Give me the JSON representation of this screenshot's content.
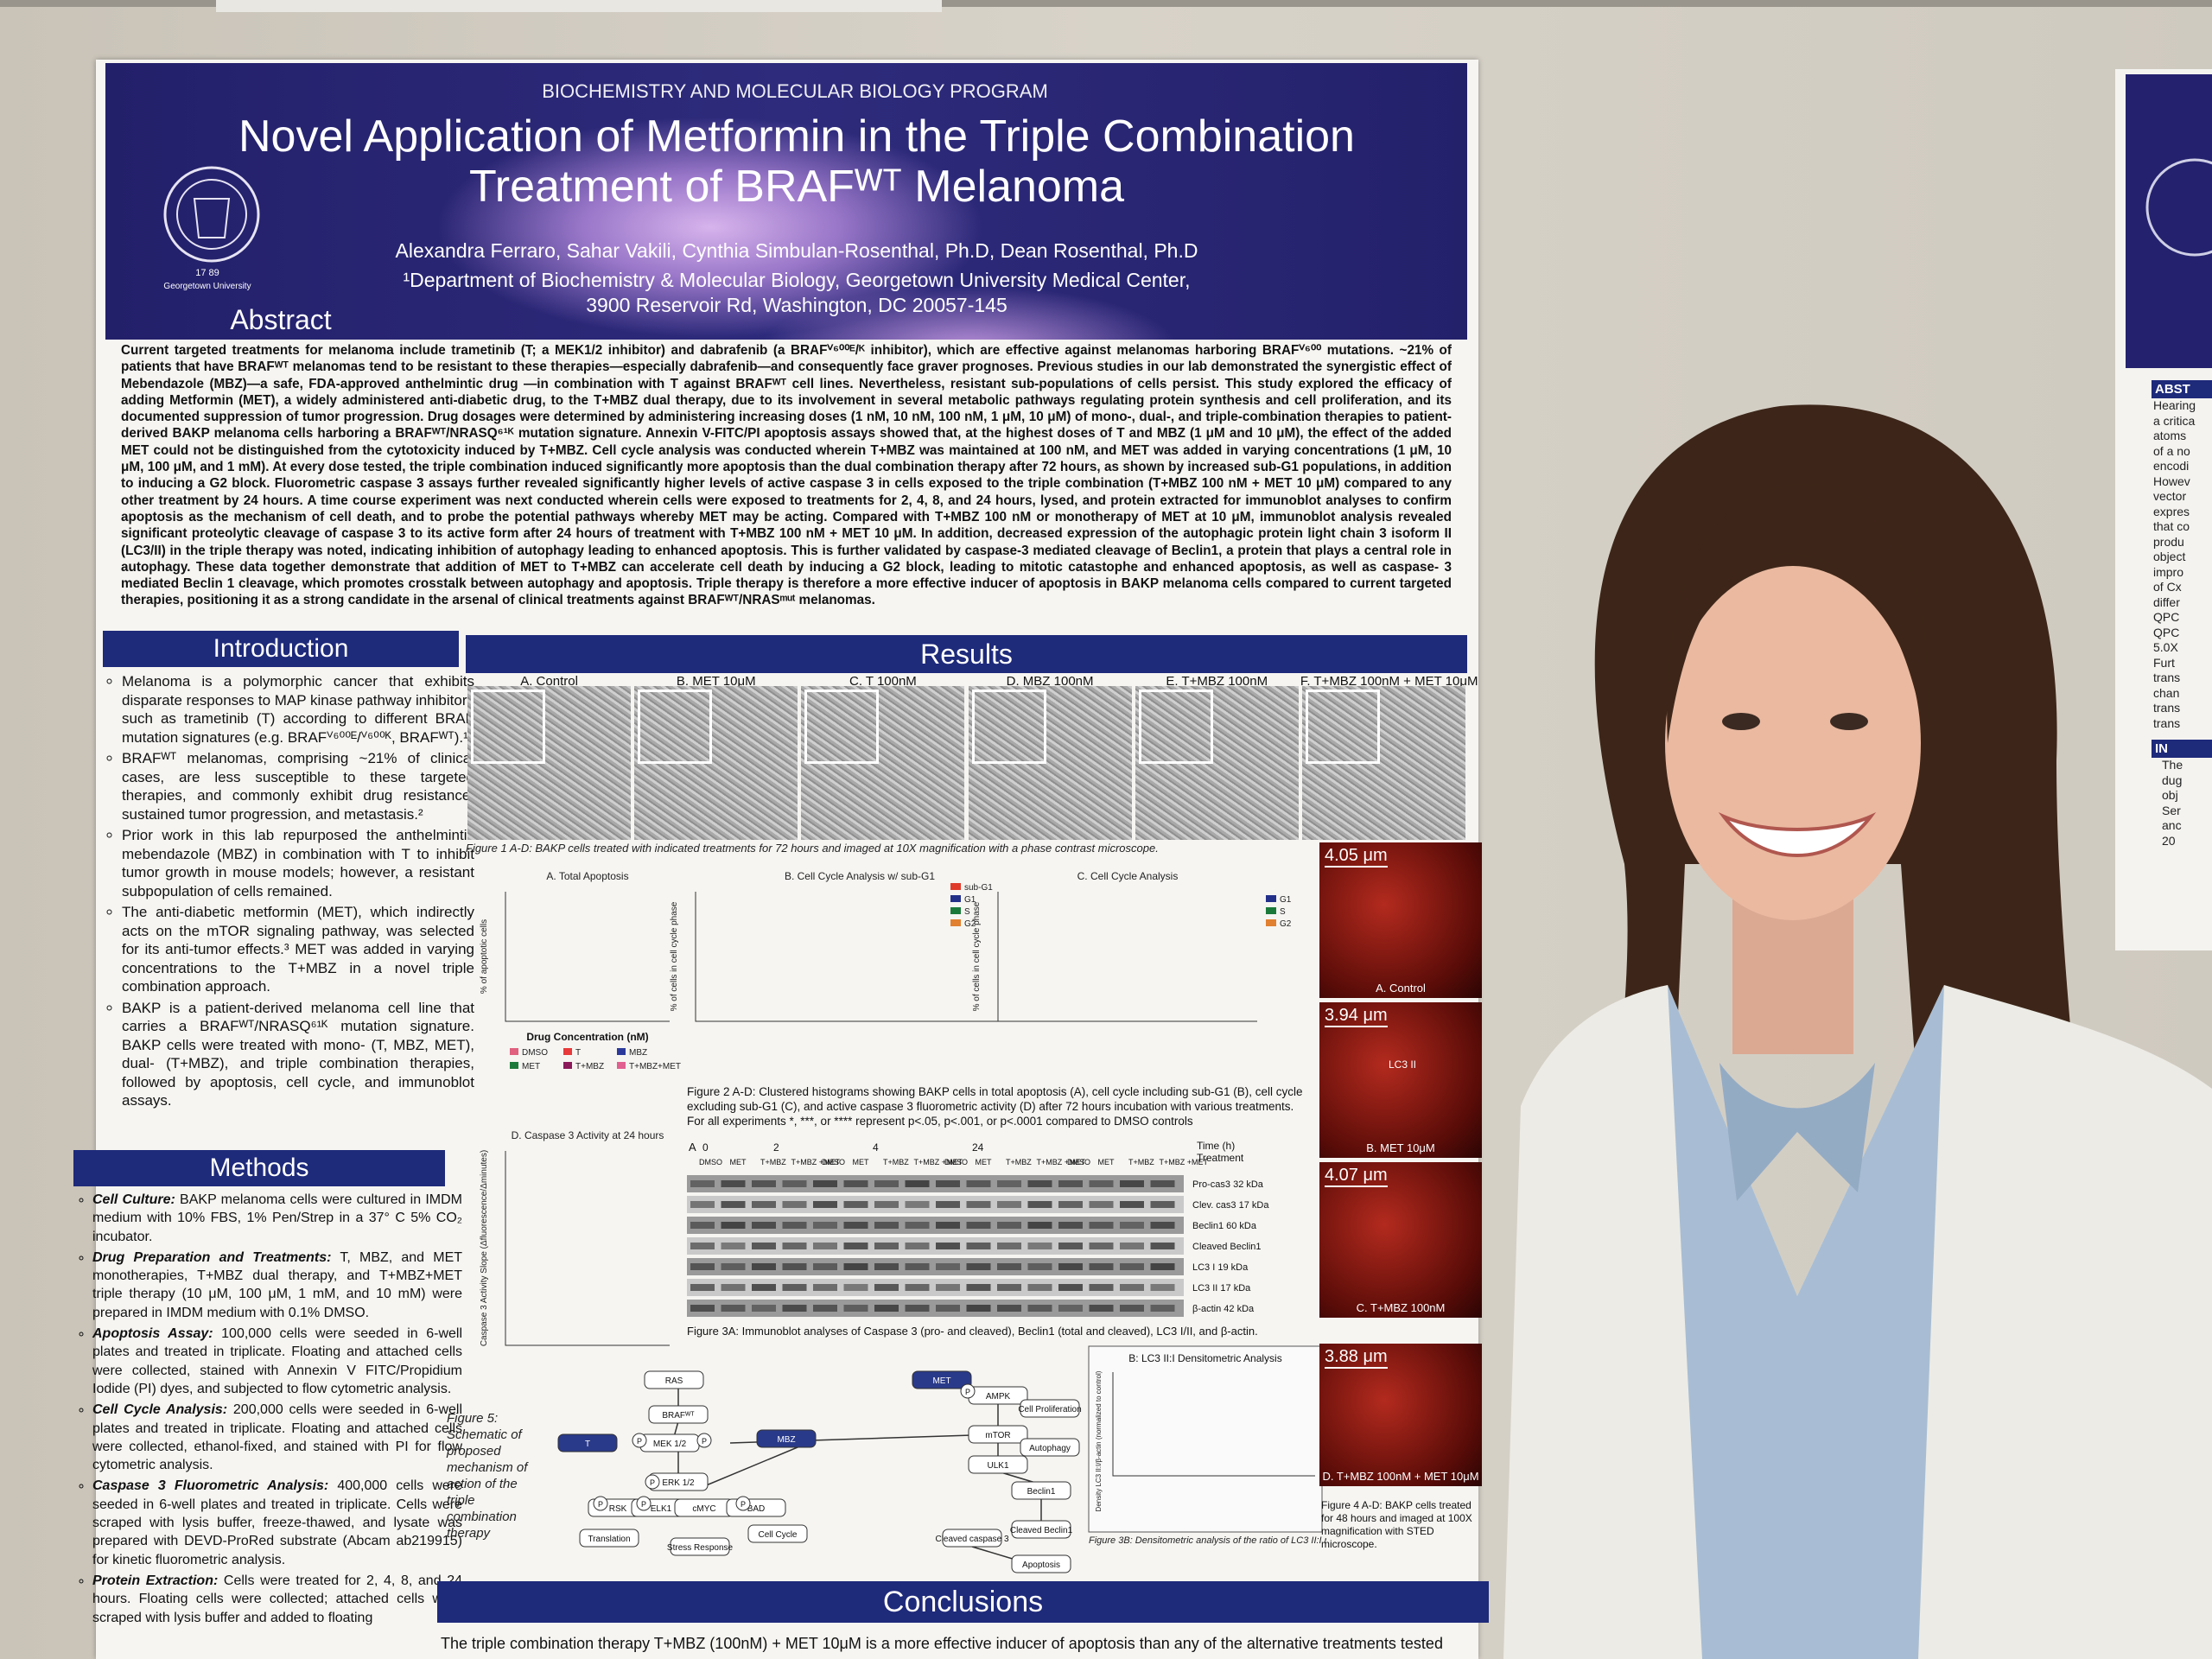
{
  "header": {
    "program": "BIOCHEMISTRY AND MOLECULAR BIOLOGY PROGRAM",
    "title_line1": "Novel Application of Metformin in the Triple Combination",
    "title_line2": "Treatment of BRAFᵂᵀ Melanoma",
    "authors": "Alexandra Ferraro, Sahar Vakili, Cynthia Simbulan-Rosenthal, Ph.D, Dean Rosenthal, Ph.D",
    "affiliation": "¹Department of Biochemistry & Molecular Biology, Georgetown University Medical Center,",
    "address": "3900 Reservoir Rd, Washington, DC 20057-145",
    "seal_year": "17 89",
    "seal_text": "Georgetown University"
  },
  "abstract": {
    "heading": "Abstract",
    "text": "Current targeted treatments for melanoma include trametinib (T; a MEK1/2 inhibitor) and dabrafenib (a BRAFⱽ⁶⁰⁰ᴱ/ᴷ inhibitor), which are effective against melanomas harboring BRAFⱽ⁶⁰⁰ mutations. ~21% of patients that have BRAFᵂᵀ melanomas tend to be resistant to these therapies—especially dabrafenib—and consequently face graver prognoses. Previous studies in our lab demonstrated the synergistic effect of Mebendazole (MBZ)—a safe, FDA-approved anthelmintic drug —in combination with T against BRAFᵂᵀ cell lines. Nevertheless, resistant sub-populations of cells persist. This study explored the efficacy of adding Metformin (MET), a widely administered anti-diabetic drug, to the T+MBZ dual therapy, due to its involvement in several metabolic pathways regulating protein synthesis and cell proliferation, and its documented suppression of tumor progression. Drug dosages were determined by administering increasing doses (1 nM, 10 nM, 100 nM, 1 μM, 10 μM) of mono-, dual-, and triple-combination therapies to patient-derived BAKP melanoma cells harboring a BRAFᵂᵀ/NRASQ⁶¹ᴷ mutation signature. Annexin V-FITC/PI apoptosis assays showed that, at the highest doses of T and MBZ (1 μM and 10 μM), the effect of the added MET could not be distinguished from the cytotoxicity induced by T+MBZ. Cell cycle analysis was conducted wherein T+MBZ was maintained at 100 nM, and MET was added in varying concentrations (1 μM, 10 μM, 100 μM, and 1 mM). At every dose tested, the triple combination induced significantly more apoptosis than the dual combination therapy after 72 hours, as shown by increased sub-G1 populations, in addition to inducing a G2 block. Fluorometric caspase 3 assays further revealed significantly higher levels of active caspase 3 in cells exposed to the triple combination (T+MBZ 100 nM + MET 10 μM) compared to any other treatment by 24 hours. A time course experiment was next conducted wherein cells were exposed to treatments for 2, 4, 8, and 24 hours, lysed, and protein extracted for immunoblot analyses to confirm apoptosis as the mechanism of cell death, and to probe the potential pathways whereby MET may be acting. Compared with T+MBZ 100 nM or monotherapy of MET at 10 μM, immunoblot analysis revealed significant proteolytic cleavage of caspase 3 to its active form after 24 hours of treatment with T+MBZ 100 nM + MET 10 μM. In addition, decreased expression of the autophagic protein light chain 3 isoform II (LC3/II) in the triple therapy was noted, indicating inhibition of autophagy leading to enhanced apoptosis. This is further validated by caspase-3 mediated cleavage of Beclin1, a protein that plays a central role in autophagy. These data together demonstrate that addition of MET to T+MBZ can accelerate cell death by inducing a G2 block, leading to mitotic catastophe and enhanced apoptosis, as well as caspase- 3 mediated Beclin 1 cleavage, which promotes crosstalk between autophagy and apoptosis. Triple therapy is therefore a more effective inducer of apoptosis in BAKP melanoma cells compared to current targeted therapies, positioning it as a strong candidate in the arsenal of clinical treatments against BRAFᵂᵀ/NRASᵐᵘᵗ melanomas."
  },
  "introduction": {
    "heading": "Introduction",
    "items": [
      "Melanoma is a polymorphic cancer that exhibits disparate responses to MAP kinase pathway inhibitors such as trametinib (T) according to different BRAF mutation signatures (e.g. BRAFⱽ⁶⁰⁰ᴱ/ⱽ⁶⁰⁰ᴷ, BRAFᵂᵀ).¹",
      "BRAFᵂᵀ melanomas, comprising ~21% of clinical cases, are less susceptible to these targeted therapies, and commonly exhibit drug resistance, sustained tumor progression, and metastasis.²",
      "Prior work in this lab repurposed the anthelmintic mebendazole (MBZ) in combination with T to inhibit tumor growth in mouse models; however, a resistant subpopulation of cells remained.",
      "The anti-diabetic metformin (MET), which indirectly acts on the mTOR signaling pathway, was selected for its anti-tumor effects.³ MET was added in varying concentrations to the T+MBZ in a novel triple combination approach.",
      "BAKP is a patient-derived melanoma cell line that carries a BRAFᵂᵀ/NRASQ⁶¹ᴷ mutation signature. BAKP cells were treated with mono- (T, MBZ, MET), dual- (T+MBZ), and triple combination therapies, followed by apoptosis, cell cycle, and immunoblot assays."
    ]
  },
  "methods": {
    "heading": "Methods",
    "items": [
      {
        "label": "Cell Culture:",
        "text": "BAKP melanoma cells were cultured in IMDM medium with 10% FBS, 1% Pen/Strep in a 37° C 5% CO₂ incubator."
      },
      {
        "label": "Drug Preparation and Treatments:",
        "text": "T, MBZ, and MET monotherapies, T+MBZ dual therapy, and T+MBZ+MET triple therapy (10 μM, 100 μM, 1 mM, and 10 mM) were prepared in IMDM medium with 0.1% DMSO."
      },
      {
        "label": "Apoptosis Assay:",
        "text": "100,000 cells were seeded in 6-well plates and treated in triplicate. Floating and attached cells were collected, stained with Annexin V FITC/Propidium Iodide (PI) dyes, and subjected to flow cytometric analysis."
      },
      {
        "label": "Cell Cycle Analysis:",
        "text": "200,000 cells were seeded in 6-well plates and treated in triplicate. Floating and attached cells were collected, ethanol-fixed, and stained with PI for flow cytometric analysis."
      },
      {
        "label": "Caspase 3 Fluorometric Analysis:",
        "text": "400,000 cells were seeded in 6-well plates and treated in triplicate. Cells were scraped with lysis buffer, freeze-thawed, and lysate was prepared with DEVD-ProRed substrate (Abcam ab219915) for kinetic fluorometric analysis."
      },
      {
        "label": "Protein Extraction:",
        "text": "Cells were treated for 2, 4, 8, and 24 hours. Floating cells were collected; attached cells were scraped with lysis buffer and added to floating"
      }
    ]
  },
  "results": {
    "heading": "Results",
    "figure1": {
      "panels": [
        "A. Control",
        "B. MET 10μM",
        "C. T 100nM",
        "D. MBZ 100nM",
        "E. T+MBZ 100nM",
        "F. T+MBZ 100nM + MET 10μM"
      ],
      "caption": "Figure 1 A-D: BAKP cells treated with indicated treatments for 72 hours and imaged at 10X magnification with a phase contrast microscope."
    },
    "figure2": {
      "chart_titles": [
        "A. Total Apoptosis",
        "B. Cell Cycle Analysis w/ sub-G1",
        "C. Cell Cycle Analysis",
        "D. Caspase 3 Activity at 24 hours"
      ],
      "y_labels": [
        "% of apoptotic cells",
        "% of cells in cell cycle phase",
        "% of cells in cell cycle phase",
        "Caspase 3 Activity Slope (Δfluorescence/Δminutes)"
      ],
      "x_label": "Drug Concentration (nM)",
      "legend_a": [
        "DMSO",
        "T",
        "MBZ",
        "MET",
        "T+MBZ",
        "T+MBZ+MET"
      ],
      "legend_b": [
        "sub-G1",
        "G1",
        "S",
        "G2"
      ],
      "legend_c": [
        "G1",
        "S",
        "G2"
      ],
      "caption": "Figure 2 A-D: Clustered histograms showing BAKP cells in total apoptosis (A), cell cycle including sub-G1 (B), cell cycle excluding sub-G1 (C), and active caspase 3 fluorometric activity (D) after 72 hours incubation with various treatments. For all experiments *, ***, or **** represent p<.05, p<.001, or p<.0001 compared to DMSO controls"
    },
    "figure3": {
      "panel_label": "A",
      "times": [
        0,
        2,
        4,
        24
      ],
      "time_label": "Time (h)",
      "treatment_label": "Treatment",
      "lanes": [
        "DMSO",
        "MET",
        "T+MBZ",
        "T+MBZ +MET"
      ],
      "bands": [
        "Pro-cas3 32 kDa",
        "Clev. cas3 17 kDa",
        "Beclin1 60 kDa",
        "Cleaved Beclin1",
        "LC3 I 19 kDa",
        "LC3 II 17 kDa",
        "β-actin 42 kDa"
      ],
      "caption": "Figure 3A: Immunoblot analyses of Caspase 3 (pro- and cleaved), Beclin1 (total and cleaved), LC3 I/II, and β-actin.",
      "densitometry_title": "B: LC3 II:I Densitometric Analysis",
      "densitometry_ylabel": "Density LC3 II:I/β-actin (normalized to control)",
      "densitometry_caption": "Figure 3B: Densitometric analysis of the ratio of LC3 II:I normalized to DMSO control."
    },
    "figure4": {
      "panels": [
        {
          "scale": "4.05 μm",
          "label": "A. Control"
        },
        {
          "scale": "3.94 μm",
          "label": "B. MET 10μM"
        },
        {
          "scale": "4.07 μm",
          "label": "C. T+MBZ 100nM"
        },
        {
          "scale": "3.88 μm",
          "label": "D. T+MBZ 100nM + MET 10μM"
        }
      ],
      "annotation": "LC3 II",
      "caption": "Figure 4 A-D: BAKP cells treated for 48 hours and imaged at 100X magnification with STED microscope."
    },
    "figure5": {
      "caption": "Figure 5: Schematic of proposed mechanism of action of the triple combination therapy",
      "phospho": "P",
      "nodes": [
        "RAS",
        "BRAFᵂᵀ",
        "T",
        "MEK 1/2",
        "ERK 1/2",
        "RSK",
        "ELK1",
        "cMYC",
        "BAD",
        "Translation",
        "Stress Response",
        "Cell Cycle",
        "MBZ",
        "MET",
        "AMPK",
        "mTOR",
        "ULK1",
        "Cell Proliferation",
        "Autophagy",
        "Beclin1",
        "Cleaved Beclin1",
        "Cleaved caspase 3",
        "Apoptosis"
      ]
    }
  },
  "conclusions": {
    "heading": "Conclusions",
    "text": "The triple combination therapy T+MBZ (100nM) + MET 10μM is a more effective inducer of apoptosis than any of the alternative treatments tested"
  },
  "side_poster": {
    "headings": [
      "ABST",
      "IN"
    ],
    "lines_a": [
      "Hearing",
      "a critica",
      "atoms",
      "of a no",
      "encodi",
      "Howev",
      "vector",
      "expres",
      "that co",
      "produ",
      "object",
      "impro",
      "of Cx",
      "differ",
      "QPC",
      "QPC",
      "5.0X",
      "Furt",
      "trans",
      "chan",
      "trans",
      "trans"
    ],
    "lines_b": [
      "The",
      "dug",
      "obj",
      "Ser",
      "anc",
      "20"
    ]
  }
}
